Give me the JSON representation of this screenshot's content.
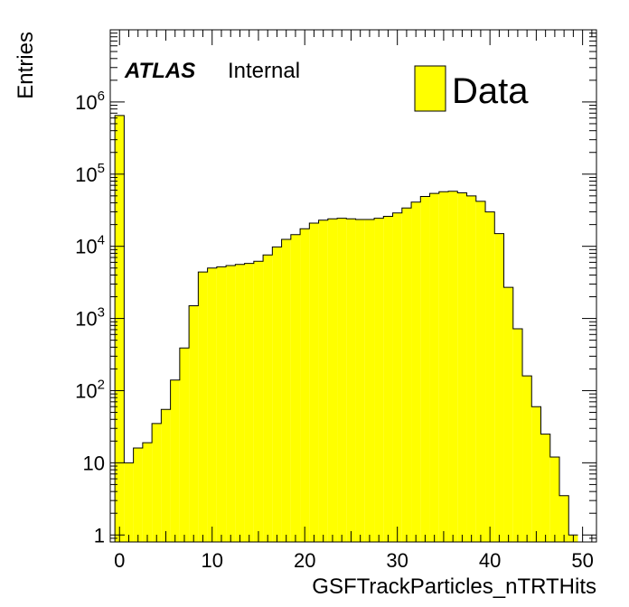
{
  "chart_data": {
    "type": "bar",
    "histogram": true,
    "xlabel": "GSFTrackParticles_nTRTHits",
    "ylabel": "Entries",
    "xlim": [
      -1,
      51.5
    ],
    "ylim": [
      0.8,
      10000000
    ],
    "log_y": true,
    "grid": false,
    "fill_color": "#ffff00",
    "line_color": "#000000",
    "bin_width": 1,
    "x_start": -0.5,
    "values": [
      650000,
      10,
      16,
      19,
      35,
      55,
      140,
      390,
      1500,
      4400,
      5000,
      5200,
      5400,
      5600,
      5800,
      6200,
      7600,
      9800,
      12500,
      14500,
      17500,
      21000,
      23000,
      24000,
      24500,
      24000,
      23500,
      23500,
      24500,
      26000,
      29000,
      34000,
      41000,
      49000,
      54000,
      57000,
      58000,
      55000,
      50000,
      42000,
      30000,
      15000,
      2700,
      720,
      160,
      60,
      25,
      12,
      3.5,
      1
    ],
    "x_ticks": [
      0,
      10,
      20,
      30,
      40,
      50
    ],
    "y_ticks": [
      {
        "value": 1,
        "base": "1",
        "exp": ""
      },
      {
        "value": 10,
        "base": "10",
        "exp": ""
      },
      {
        "value": 100,
        "base": "10",
        "exp": "2"
      },
      {
        "value": 1000,
        "base": "10",
        "exp": "3"
      },
      {
        "value": 10000,
        "base": "10",
        "exp": "4"
      },
      {
        "value": 100000,
        "base": "10",
        "exp": "5"
      },
      {
        "value": 1000000,
        "base": "10",
        "exp": "6"
      }
    ],
    "annotation": {
      "experiment": "ATLAS",
      "status": "Internal"
    },
    "legend": {
      "entries": [
        "Data"
      ],
      "placement": "top-right"
    }
  }
}
